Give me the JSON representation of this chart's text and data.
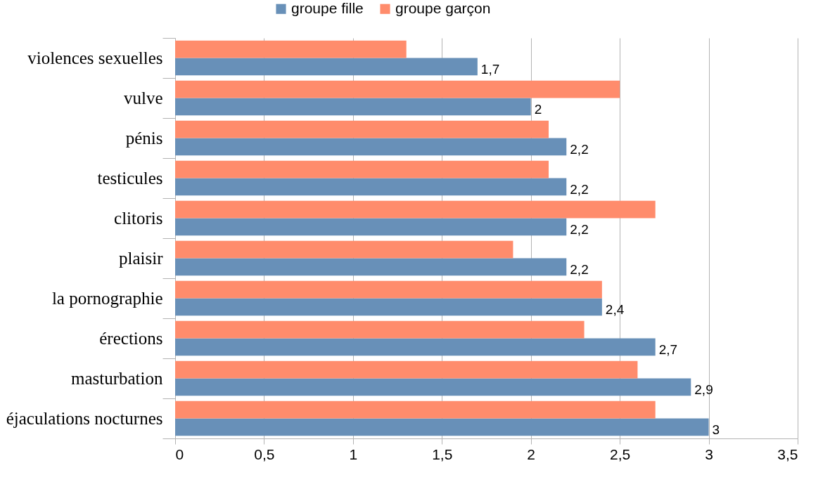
{
  "chart_data": {
    "type": "bar",
    "orientation": "horizontal",
    "categories": [
      "violences sexuelles",
      "vulve",
      "pénis",
      "testicules",
      "clitoris",
      "plaisir",
      "la pornographie",
      "érections",
      "masturbation",
      "éjaculations nocturnes"
    ],
    "series": [
      {
        "name": "groupe fille",
        "color": "#6890b8",
        "values": [
          1.7,
          2,
          2.2,
          2.2,
          2.2,
          2.2,
          2.4,
          2.7,
          2.9,
          3
        ],
        "value_labels": [
          "1,7",
          "2",
          "2,2",
          "2,2",
          "2,2",
          "2,2",
          "2,4",
          "2,7",
          "2,9",
          "3"
        ]
      },
      {
        "name": "groupe garçon",
        "color": "#ff8c6c",
        "values": [
          1.3,
          2.5,
          2.1,
          2.1,
          2.7,
          1.9,
          2.4,
          2.3,
          2.6,
          2.7
        ]
      }
    ],
    "xlim": [
      0,
      3.5
    ],
    "xticks": [
      0,
      {
        "value": 0.5,
        "label": "0,5"
      },
      1,
      {
        "value": 1.5,
        "label": "1,5"
      },
      2,
      {
        "value": 2.5,
        "label": "2,5"
      },
      3,
      {
        "value": 3.5,
        "label": "3,5"
      }
    ],
    "grid": "x",
    "legend": "top"
  }
}
